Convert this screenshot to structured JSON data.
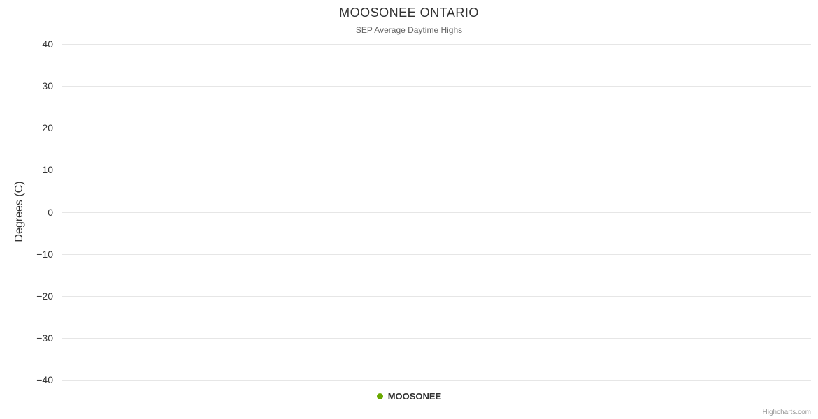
{
  "chart_data": {
    "type": "line",
    "title": "MOOSONEE ONTARIO",
    "subtitle": "SEP Average Daytime Highs",
    "xlabel": "",
    "ylabel": "Degrees (C)",
    "ylim": [
      -40,
      40
    ],
    "yticks": [
      40,
      30,
      20,
      10,
      0,
      -10,
      -20,
      -30,
      -40
    ],
    "grid": true,
    "gridline_color": "#e6e6e6",
    "legend_position": "bottom-center",
    "series": [
      {
        "name": "MOOSONEE",
        "color": "#69a800",
        "marker": "circle",
        "values": []
      }
    ]
  },
  "credits": {
    "label": "Highcharts.com"
  }
}
